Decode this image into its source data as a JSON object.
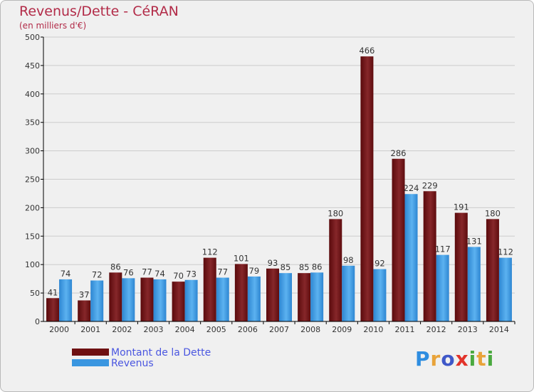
{
  "header": {
    "title": "Revenus/Dette - CéRAN",
    "subtitle": "(en milliers d'€)"
  },
  "logo": {
    "text": "Proxiti",
    "colors": [
      "#2e8de0",
      "#e8a33a",
      "#3f58c8",
      "#e2332a",
      "#4aa93f",
      "#e8a33a",
      "#4aa93f"
    ]
  },
  "colors": {
    "dette": "#6e1012",
    "revenus": "#3a96e0",
    "grid": "#cccccc",
    "axis": "#000000"
  },
  "chart_data": {
    "type": "bar",
    "categories": [
      "2000",
      "2001",
      "2002",
      "2003",
      "2004",
      "2005",
      "2006",
      "2007",
      "2008",
      "2009",
      "2010",
      "2011",
      "2012",
      "2013",
      "2014"
    ],
    "series": [
      {
        "name": "Montant de la Dette",
        "values": [
          41,
          37,
          86,
          77,
          70,
          112,
          101,
          93,
          85,
          180,
          466,
          286,
          229,
          191,
          180
        ]
      },
      {
        "name": "Revenus",
        "values": [
          74,
          72,
          76,
          74,
          73,
          77,
          79,
          85,
          86,
          98,
          92,
          224,
          117,
          131,
          112
        ]
      }
    ],
    "yticks": [
      0,
      50,
      100,
      150,
      200,
      250,
      300,
      350,
      400,
      450,
      500
    ],
    "ylim": [
      0,
      500
    ],
    "grid": true,
    "legend_position": "bottom-left"
  }
}
